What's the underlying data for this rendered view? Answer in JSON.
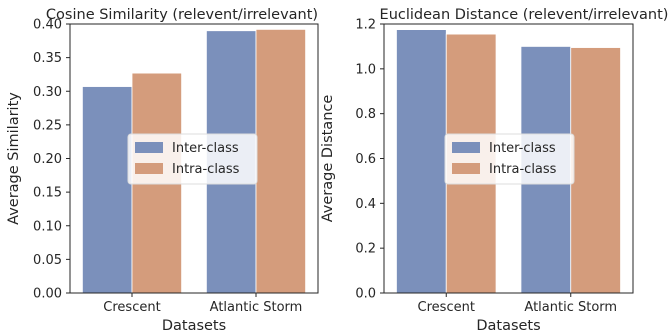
{
  "chart_data": [
    {
      "type": "bar",
      "title": "Cosine Similarity (relevent/irrelevant)",
      "xlabel": "Datasets",
      "ylabel": "Average Similarity",
      "categories": [
        "Crescent",
        "Atlantic Storm"
      ],
      "series": [
        {
          "name": "Inter-class",
          "values": [
            0.307,
            0.39
          ],
          "color": "#7b90bb"
        },
        {
          "name": "Intra-class",
          "values": [
            0.327,
            0.392
          ],
          "color": "#d49c7c"
        }
      ],
      "ylim": [
        0,
        0.4
      ],
      "yticks": [
        0.0,
        0.05,
        0.1,
        0.15,
        0.2,
        0.25,
        0.3,
        0.35,
        0.4
      ],
      "ytick_labels": [
        "0.00",
        "0.05",
        "0.10",
        "0.15",
        "0.20",
        "0.25",
        "0.30",
        "0.35",
        "0.40"
      ],
      "legend_position": "center-right",
      "grid": false
    },
    {
      "type": "bar",
      "title": "Euclidean Distance (relevent/irrelevant)",
      "xlabel": "Datasets",
      "ylabel": "Average Distance",
      "categories": [
        "Crescent",
        "Atlantic Storm"
      ],
      "series": [
        {
          "name": "Inter-class",
          "values": [
            1.175,
            1.1
          ],
          "color": "#7b90bb"
        },
        {
          "name": "Intra-class",
          "values": [
            1.155,
            1.095
          ],
          "color": "#d49c7c"
        }
      ],
      "ylim": [
        0,
        1.2
      ],
      "yticks": [
        0.0,
        0.2,
        0.4,
        0.6,
        0.8,
        1.0,
        1.2
      ],
      "ytick_labels": [
        "0.0",
        "0.2",
        "0.4",
        "0.6",
        "0.8",
        "1.0",
        "1.2"
      ],
      "legend_position": "center",
      "grid": false
    }
  ]
}
